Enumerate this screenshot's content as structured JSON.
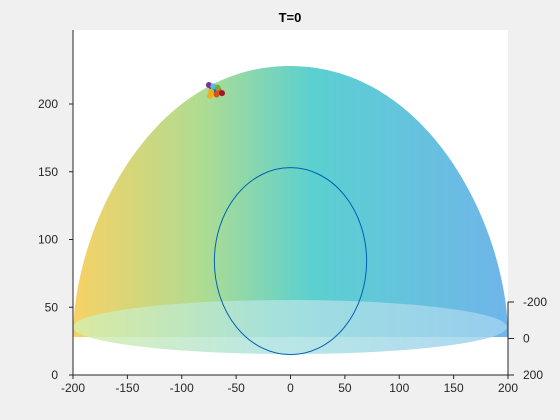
{
  "chart_data": {
    "type": "scatter",
    "title": "T=0",
    "subtype": "3d-hemisphere-surface",
    "xlim": [
      -200,
      200
    ],
    "ylim": [
      0,
      230
    ],
    "zlim": [
      -200,
      200
    ],
    "x_ticks": [
      -200,
      -150,
      -100,
      -50,
      0,
      50,
      100,
      150,
      200
    ],
    "y_ticks": [
      0,
      50,
      100,
      150,
      200
    ],
    "z_ticks": [
      -200,
      0,
      200
    ],
    "grid": false,
    "legend": "none",
    "surface": {
      "shape": "hemisphere",
      "radius": 200,
      "colormap": [
        "#f6c94a",
        "#9fd67f",
        "#3ec8c8",
        "#56a8e6"
      ],
      "opacity": 0.85
    },
    "ellipse": {
      "center": [
        0,
        84
      ],
      "semi_axes": [
        70,
        69
      ],
      "color": "#0061b0"
    },
    "cluster": {
      "center": [
        -70,
        210
      ],
      "points": [
        {
          "x": -75,
          "y": 214,
          "color": "#7e2f8e"
        },
        {
          "x": -72,
          "y": 212,
          "color": "#7e2f8e"
        },
        {
          "x": -70,
          "y": 210,
          "color": "#0072bd"
        },
        {
          "x": -66,
          "y": 210,
          "color": "#d95319"
        },
        {
          "x": -68,
          "y": 207,
          "color": "#d95319"
        },
        {
          "x": -74,
          "y": 206,
          "color": "#edb120"
        },
        {
          "x": -63,
          "y": 208,
          "color": "#a2142f"
        },
        {
          "x": -71,
          "y": 213,
          "color": "#4dbeee"
        },
        {
          "x": -67,
          "y": 212,
          "color": "#77ac30"
        },
        {
          "x": -73,
          "y": 209,
          "color": "#edb120"
        }
      ]
    }
  }
}
